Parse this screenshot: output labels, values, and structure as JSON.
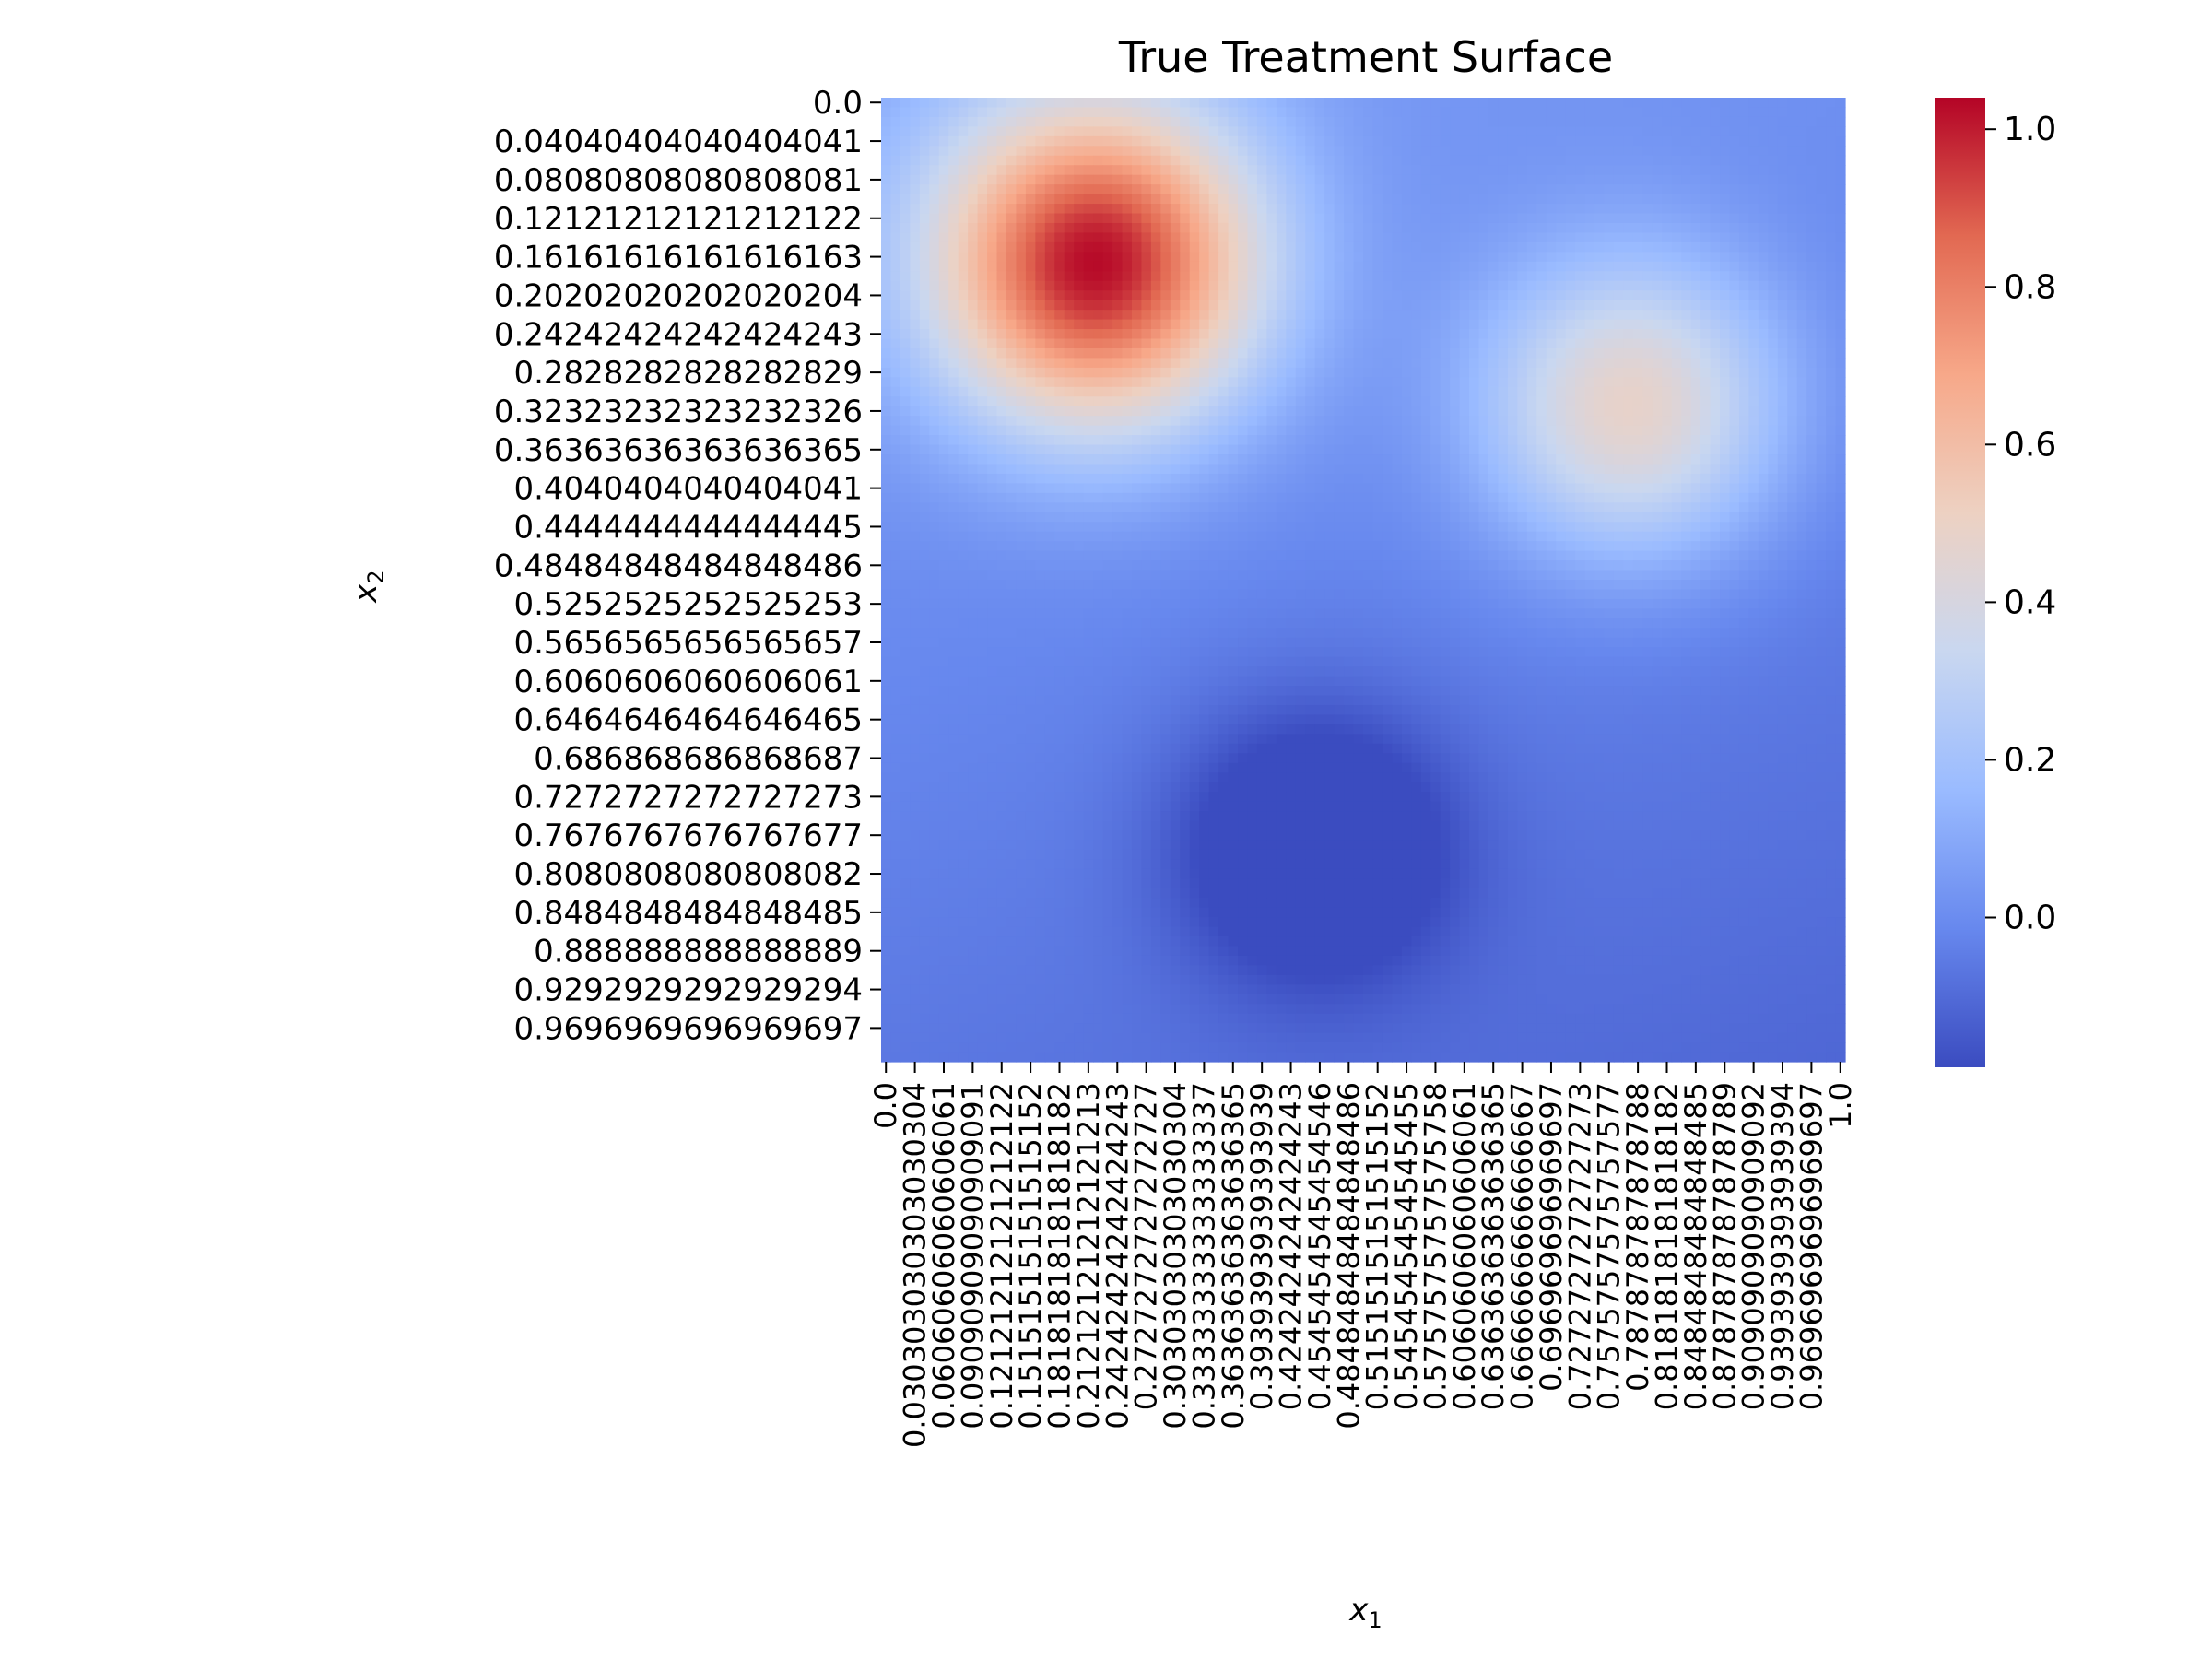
{
  "chart_data": {
    "type": "heatmap",
    "title": "True Treatment Surface",
    "xlabel": "x",
    "xlabel_sub": "1",
    "ylabel": "x",
    "ylabel_sub": "2",
    "grid": false,
    "colormap": "coolwarm",
    "colormap_stops": [
      "#3b4cc0",
      "#6788ee",
      "#9abbff",
      "#c9d7f0",
      "#edd1c2",
      "#f7a889",
      "#e26952",
      "#b40426"
    ],
    "value_range": [
      -0.19,
      1.04
    ],
    "colorbar_ticks": [
      {
        "value": 0.0,
        "label": "0.0"
      },
      {
        "value": 0.2,
        "label": "0.2"
      },
      {
        "value": 0.4,
        "label": "0.4"
      },
      {
        "value": 0.6,
        "label": "0.6"
      },
      {
        "value": 0.8,
        "label": "0.8"
      },
      {
        "value": 1.0,
        "label": "1.0"
      }
    ],
    "grid_size": 100,
    "x_range": [
      0.0,
      1.0
    ],
    "y_range": [
      0.0,
      1.0
    ],
    "y_orientation": "top-to-bottom",
    "surface_components": [
      {
        "center_x1": 0.22,
        "center_x2": 0.17,
        "amplitude": 1.0,
        "width": 0.12
      },
      {
        "center_x1": 0.78,
        "center_x2": 0.32,
        "amplitude": 0.5,
        "width": 0.11
      },
      {
        "center_x1": 0.45,
        "center_x2": 0.78,
        "amplitude": -0.3,
        "width": 0.1
      }
    ],
    "surface_baseline": 0.06,
    "surface_gradient_x1": -0.05,
    "surface_gradient_x2": -0.12,
    "x_tick_labels": [
      "0.0",
      "0.030303030303030304",
      "0.06060606060606061",
      "0.09090909090909091",
      "0.12121212121212122",
      "0.15151515151515152",
      "0.18181818181818182",
      "0.21212121212121213",
      "0.24242424242424243",
      "0.2727272727272727",
      "0.30303030303030304",
      "0.33333333333333337",
      "0.36363636363636365",
      "0.3939393939393939",
      "0.4242424242424243",
      "0.4545454545454546",
      "0.48484848484848486",
      "0.5151515151515152",
      "0.5454545454545455",
      "0.5757575757575758",
      "0.6060606060606061",
      "0.6363636363636365",
      "0.6666666666666667",
      "0.696969696969697",
      "0.7272727272727273",
      "0.7575757575757577",
      "0.787878787878788",
      "0.8181818181818182",
      "0.8484848484848485",
      "0.8787878787878789",
      "0.9090909090909092",
      "0.9393939393939394",
      "0.9696969696969697",
      "1.0"
    ],
    "y_tick_labels": [
      "0.0",
      "0.04040404040404041",
      "0.08080808080808081",
      "0.12121212121212122",
      "0.16161616161616163",
      "0.20202020202020204",
      "0.24242424242424243",
      "0.2828282828282829",
      "0.32323232323232326",
      "0.36363636363636365",
      "0.4040404040404041",
      "0.4444444444444445",
      "0.48484848484848486",
      "0.5252525252525253",
      "0.5656565656565657",
      "0.6060606060606061",
      "0.6464646464646465",
      "0.686868686868687",
      "0.7272727272727273",
      "0.7676767676767677",
      "0.8080808080808082",
      "0.8484848484848485",
      "0.888888888888889",
      "0.9292929292929294",
      "0.9696969696969697"
    ]
  }
}
